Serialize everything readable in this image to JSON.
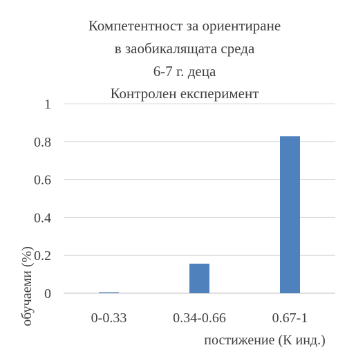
{
  "chart_data": {
    "type": "bar",
    "title_lines": [
      "Компетентност  за ориентиране",
      "в заобикалящата  среда",
      "6-7 г. деца",
      "Контролен експеримент"
    ],
    "categories": [
      "0-0.33",
      "0.34-0.66",
      "0.67-1"
    ],
    "values": [
      0.005,
      0.155,
      0.828
    ],
    "xlabel": "постижение (К инд.)",
    "ylabel": "обучаеми (%)",
    "ylim": [
      0,
      1
    ],
    "yticks": [
      "0",
      "0.2",
      "0.4",
      "0.6",
      "0.8",
      "1"
    ],
    "grid": true,
    "legend": "none",
    "colors": {
      "bar": "#4f81bd",
      "grid": "#d9d9d9",
      "axis": "#bfbfbf",
      "text": "#404040"
    }
  }
}
